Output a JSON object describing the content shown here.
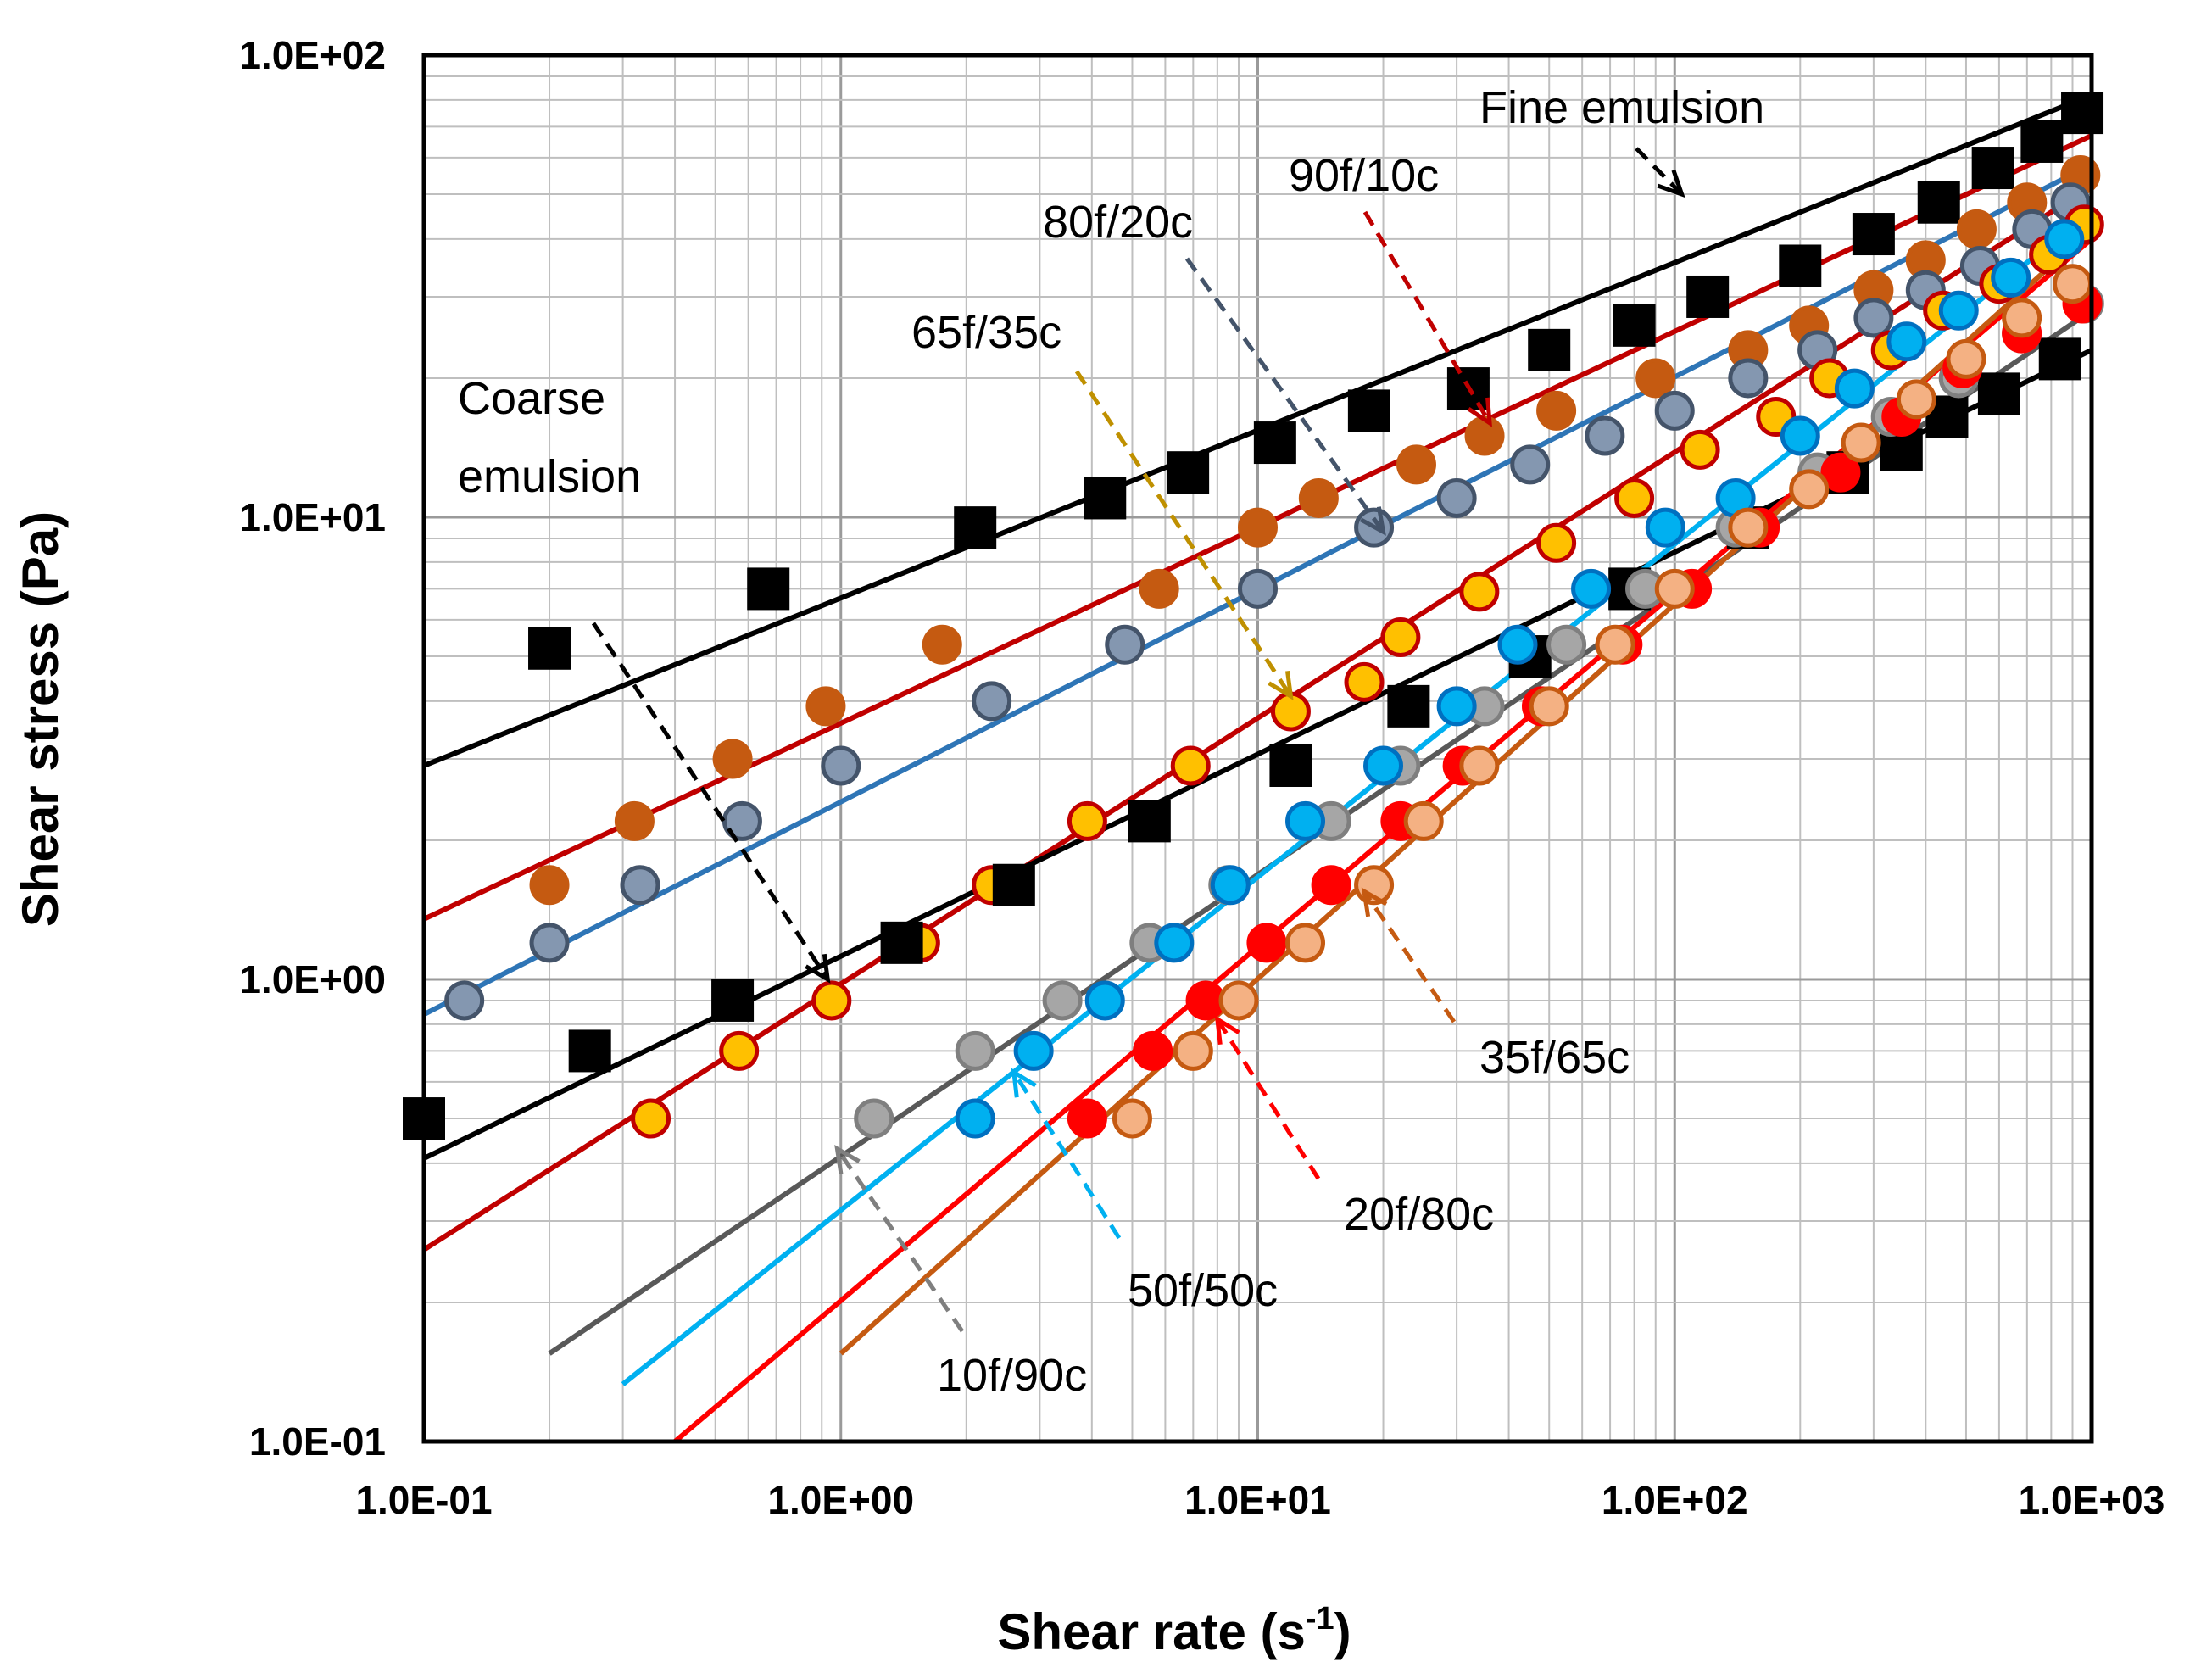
{
  "chart_data": {
    "type": "scatter",
    "scale": "log-log",
    "title": "",
    "xlabel": "Shear rate (s",
    "xlabel_sup": "-1",
    "xlabel_suffix": ")",
    "ylabel": "Shear stress (Pa)",
    "xlim": [
      0.1,
      1000
    ],
    "ylim": [
      0.1,
      100
    ],
    "grid": true,
    "xticks": [
      {
        "value": 0.1,
        "label": "1.0E-01"
      },
      {
        "value": 1,
        "label": "1.0E+00"
      },
      {
        "value": 10,
        "label": "1.0E+01"
      },
      {
        "value": 100,
        "label": "1.0E+02"
      },
      {
        "value": 1000,
        "label": "1.0E+03"
      }
    ],
    "yticks": [
      {
        "value": 0.1,
        "label": "1.0E-01"
      },
      {
        "value": 1,
        "label": "1.0E+00"
      },
      {
        "value": 10,
        "label": "1.0E+01"
      },
      {
        "value": 100,
        "label": "1.0E+02"
      }
    ],
    "series": [
      {
        "name": "Fine emulsion",
        "marker": "square",
        "fill": "#000000",
        "stroke": "#000000",
        "line": "#000000",
        "fit": {
          "x": [
            0.1,
            1000
          ],
          "y": [
            2.9,
            82
          ]
        },
        "x": [
          0.67,
          2.1,
          4.3,
          6.8,
          11,
          18.5,
          32,
          50,
          80,
          120,
          200,
          300,
          430,
          580,
          760,
          950
        ],
        "y": [
          7,
          9.5,
          11,
          12.5,
          14.5,
          17,
          19,
          23,
          26,
          30,
          35,
          41,
          48,
          57,
          65,
          75
        ]
      },
      {
        "name": "90f/10c",
        "marker": "circle",
        "fill": "#c55a11",
        "stroke": "#c55a11",
        "line": "#c00000",
        "fit": {
          "x": [
            0.1,
            1000
          ],
          "y": [
            1.35,
            67
          ]
        },
        "x": [
          0.2,
          0.32,
          0.55,
          0.92,
          1.75,
          5.8,
          10,
          14,
          24,
          35,
          52,
          90,
          150,
          210,
          300,
          400,
          530,
          700,
          940
        ],
        "y": [
          1.6,
          2.2,
          3,
          3.9,
          5.3,
          7,
          9.5,
          11,
          13,
          15,
          17,
          20,
          23,
          26,
          31,
          36,
          42,
          48,
          55
        ]
      },
      {
        "name": "80f/20c",
        "marker": "circle",
        "fill": "#8497b0",
        "stroke": "#44546a",
        "line": "#2e75b6",
        "fit": {
          "x": [
            0.1,
            1000
          ],
          "y": [
            0.84,
            58
          ]
        },
        "x": [
          0.125,
          0.2,
          0.33,
          0.58,
          1.0,
          2.3,
          4.8,
          10,
          19,
          30,
          45,
          68,
          100,
          150,
          220,
          300,
          400,
          540,
          720,
          890
        ],
        "y": [
          0.9,
          1.2,
          1.6,
          2.2,
          2.9,
          4.0,
          5.3,
          7.0,
          9.5,
          11,
          13,
          15,
          17,
          20,
          23,
          27,
          31,
          35,
          42,
          48
        ]
      },
      {
        "name": "65f/35c",
        "marker": "circle",
        "fill": "#ffc000",
        "stroke": "#c00000",
        "line": "#c00000",
        "fit": {
          "x": [
            0.1,
            1000
          ],
          "y": [
            0.26,
            52
          ]
        },
        "x": [
          0.35,
          0.57,
          0.95,
          1.55,
          2.3,
          3.9,
          6.9,
          12,
          18,
          22,
          34,
          52,
          80,
          115,
          175,
          235,
          330,
          440,
          600,
          790,
          960
        ],
        "y": [
          0.5,
          0.7,
          0.9,
          1.2,
          1.6,
          2.2,
          2.9,
          3.8,
          4.4,
          5.5,
          6.9,
          8.8,
          11,
          14,
          16.5,
          20,
          23,
          28,
          32,
          37,
          43
        ]
      },
      {
        "name": "Coarse emulsion",
        "marker": "square",
        "fill": "#000000",
        "stroke": "#000000",
        "line": "#000000",
        "fit": {
          "x": [
            0.1,
            1000
          ],
          "y": [
            0.41,
            23
          ]
        },
        "x": [
          0.1,
          0.2,
          0.25,
          0.55,
          1.4,
          2.6,
          5.5,
          12,
          23,
          45,
          78,
          150,
          260,
          350,
          450,
          600,
          840
        ],
        "y": [
          0.5,
          5.2,
          0.7,
          0.9,
          1.2,
          1.6,
          2.2,
          2.9,
          3.9,
          5.0,
          7.0,
          9.5,
          12.5,
          14,
          16.5,
          18.5,
          22
        ]
      },
      {
        "name": "10f/90c",
        "marker": "circle",
        "fill": "#a6a6a6",
        "stroke": "#7f7f7f",
        "line": "#595959",
        "fit": {
          "x": [
            0.2,
            1000
          ],
          "y": [
            0.155,
            28
          ]
        },
        "x": [
          1.2,
          2.1,
          3.4,
          5.5,
          8.5,
          15,
          22,
          35,
          55,
          85,
          140,
          220,
          330,
          480,
          680,
          960
        ],
        "y": [
          0.5,
          0.7,
          0.9,
          1.2,
          1.6,
          2.2,
          2.9,
          3.9,
          5.3,
          7.0,
          9.5,
          12.5,
          16.5,
          20,
          25,
          29
        ]
      },
      {
        "name": "50f/50c",
        "marker": "circle",
        "fill": "#00b0f0",
        "stroke": "#0070c0",
        "line": "#00b0f0",
        "fit": {
          "x": [
            0.3,
            1000
          ],
          "y": [
            0.133,
            46
          ]
        },
        "x": [
          2.1,
          2.9,
          4.3,
          6.3,
          8.6,
          13,
          20,
          30,
          42,
          63,
          95,
          140,
          200,
          270,
          360,
          480,
          640,
          860
        ],
        "y": [
          0.5,
          0.7,
          0.9,
          1.2,
          1.6,
          2.2,
          2.9,
          3.9,
          5.3,
          7.0,
          9.5,
          11,
          15,
          19,
          24,
          28,
          33,
          40
        ]
      },
      {
        "name": "20f/80c",
        "marker": "circle",
        "fill": "#ff0000",
        "stroke": "#ff0000",
        "line": "#ff0000",
        "fit": {
          "x": [
            0.4,
            1000
          ],
          "y": [
            0.1,
            40
          ]
        },
        "x": [
          3.9,
          5.6,
          7.5,
          10.5,
          15,
          22,
          31,
          48,
          75,
          110,
          160,
          250,
          350,
          490,
          680,
          950
        ],
        "y": [
          0.5,
          0.7,
          0.9,
          1.2,
          1.6,
          2.2,
          2.9,
          3.9,
          5.3,
          7.0,
          9.5,
          12.5,
          16.5,
          21,
          25,
          29
        ]
      },
      {
        "name": "35f/65c",
        "marker": "circle",
        "fill": "#f4b183",
        "stroke": "#c55a11",
        "line": "#c55a11",
        "fit": {
          "x": [
            1.0,
            1000
          ],
          "y": [
            0.155,
            42
          ]
        },
        "x": [
          5,
          7,
          9,
          13,
          19,
          25,
          34,
          50,
          72,
          100,
          150,
          210,
          280,
          380,
          500,
          680,
          900
        ],
        "y": [
          0.5,
          0.7,
          0.9,
          1.2,
          1.6,
          2.2,
          2.9,
          3.9,
          5.3,
          7.0,
          9.5,
          11.5,
          14.5,
          18,
          22,
          27,
          32
        ]
      }
    ],
    "annotations": [
      {
        "name": "fine-emulsion-label",
        "lines": [
          "Fine emulsion"
        ],
        "arrow_color": "#000000",
        "target": [
          104,
          50
        ]
      },
      {
        "name": "90f10c-label",
        "lines": [
          "90f/10c"
        ],
        "arrow_color": "#c00000",
        "target": [
          36,
          16
        ]
      },
      {
        "name": "80f20c-label",
        "lines": [
          "80f/20c"
        ],
        "arrow_color": "#44546a",
        "target": [
          20,
          9.3
        ]
      },
      {
        "name": "65f35c-label",
        "lines": [
          "65f/35c"
        ],
        "arrow_color": "#bf9000",
        "target": [
          12,
          4.1
        ]
      },
      {
        "name": "coarse-emulsion-label",
        "lines": [
          "Coarse",
          "emulsion"
        ],
        "arrow_color": "#000000",
        "target": [
          0.93,
          1.0
        ]
      },
      {
        "name": "35f65c-label",
        "lines": [
          "35f/65c"
        ],
        "arrow_color": "#c55a11",
        "target": [
          18,
          1.55
        ]
      },
      {
        "name": "20f80c-label",
        "lines": [
          "20f/80c"
        ],
        "arrow_color": "#ff0000",
        "target": [
          8,
          0.82
        ]
      },
      {
        "name": "50f50c-label",
        "lines": [
          "50f/50c"
        ],
        "arrow_color": "#00b0f0",
        "target": [
          2.6,
          0.63
        ]
      },
      {
        "name": "10f90c-label",
        "lines": [
          "10f/90c"
        ],
        "arrow_color": "#7f7f7f",
        "target": [
          0.98,
          0.43
        ]
      }
    ]
  }
}
